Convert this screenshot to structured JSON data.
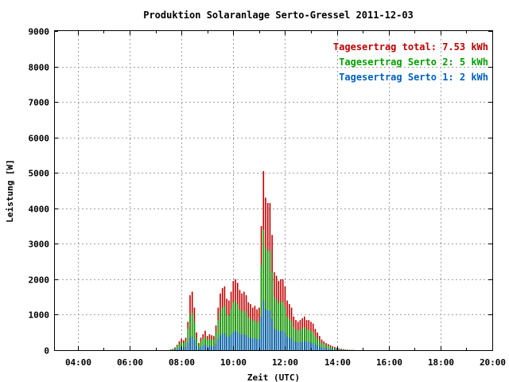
{
  "chart_data": {
    "type": "bar",
    "title": "Produktion Solaranlage Serto-Gressel 2011-12-03",
    "xlabel": "Zeit (UTC)",
    "ylabel": "Leistung [W]",
    "ylim": [
      0,
      9000
    ],
    "yticks": [
      0,
      1000,
      2000,
      3000,
      4000,
      5000,
      6000,
      7000,
      8000,
      9000
    ],
    "xlim": [
      "03:05",
      "20:00"
    ],
    "xticks": [
      "04:00",
      "06:00",
      "08:00",
      "10:00",
      "12:00",
      "14:00",
      "16:00",
      "18:00",
      "20:00"
    ],
    "grid": true,
    "legend_position": "top-right",
    "legend": [
      {
        "text": "Tagesertrag total: 7.53 kWh",
        "color": "#c00000"
      },
      {
        "text": "Tagesertrag Serto 2: 5 kWh",
        "color": "#00a000"
      },
      {
        "text": "Tagesertrag Serto 1: 2 kWh",
        "color": "#0060c0"
      }
    ],
    "series": [
      {
        "name": "total",
        "color": "#c00000",
        "x": [
          "07:35",
          "07:40",
          "07:45",
          "07:50",
          "07:55",
          "08:00",
          "08:05",
          "08:10",
          "08:15",
          "08:20",
          "08:25",
          "08:30",
          "08:35",
          "08:40",
          "08:45",
          "08:50",
          "08:55",
          "09:00",
          "09:05",
          "09:10",
          "09:15",
          "09:20",
          "09:25",
          "09:30",
          "09:35",
          "09:40",
          "09:45",
          "09:50",
          "09:55",
          "10:00",
          "10:05",
          "10:10",
          "10:15",
          "10:20",
          "10:25",
          "10:30",
          "10:35",
          "10:40",
          "10:45",
          "10:50",
          "10:55",
          "11:00",
          "11:05",
          "11:10",
          "11:15",
          "11:20",
          "11:25",
          "11:30",
          "11:35",
          "11:40",
          "11:45",
          "11:50",
          "11:55",
          "12:00",
          "12:05",
          "12:10",
          "12:15",
          "12:20",
          "12:25",
          "12:30",
          "12:35",
          "12:40",
          "12:45",
          "12:50",
          "12:55",
          "13:00",
          "13:05",
          "13:10",
          "13:15",
          "13:20",
          "13:25",
          "13:30",
          "13:35",
          "13:40",
          "13:45",
          "13:50",
          "13:55",
          "14:00",
          "14:05",
          "14:10",
          "14:15",
          "14:20",
          "14:25",
          "14:30",
          "14:35",
          "14:40"
        ],
        "values": [
          20,
          40,
          80,
          150,
          250,
          320,
          280,
          350,
          800,
          1550,
          1650,
          1200,
          500,
          200,
          350,
          450,
          550,
          400,
          450,
          420,
          400,
          700,
          1200,
          1600,
          1750,
          1800,
          1450,
          1400,
          1650,
          1950,
          2000,
          1900,
          1700,
          1600,
          1650,
          1550,
          1350,
          1300,
          1200,
          1250,
          1150,
          1200,
          3500,
          5050,
          4300,
          4150,
          4150,
          3250,
          2200,
          2100,
          1950,
          2000,
          2000,
          1800,
          1400,
          1300,
          1200,
          950,
          850,
          800,
          850,
          900,
          950,
          850,
          850,
          800,
          750,
          600,
          500,
          400,
          300,
          250,
          200,
          170,
          140,
          110,
          90,
          70,
          50,
          40,
          30,
          20,
          15,
          10,
          8,
          5
        ]
      },
      {
        "name": "Serto 2",
        "color": "#00a000",
        "x": [
          "07:35",
          "07:40",
          "07:45",
          "07:50",
          "07:55",
          "08:00",
          "08:05",
          "08:10",
          "08:15",
          "08:20",
          "08:25",
          "08:30",
          "08:35",
          "08:40",
          "08:45",
          "08:50",
          "08:55",
          "09:00",
          "09:05",
          "09:10",
          "09:15",
          "09:20",
          "09:25",
          "09:30",
          "09:35",
          "09:40",
          "09:45",
          "09:50",
          "09:55",
          "10:00",
          "10:05",
          "10:10",
          "10:15",
          "10:20",
          "10:25",
          "10:30",
          "10:35",
          "10:40",
          "10:45",
          "10:50",
          "10:55",
          "11:00",
          "11:05",
          "11:10",
          "11:15",
          "11:20",
          "11:25",
          "11:30",
          "11:35",
          "11:40",
          "11:45",
          "11:50",
          "11:55",
          "12:00",
          "12:05",
          "12:10",
          "12:15",
          "12:20",
          "12:25",
          "12:30",
          "12:35",
          "12:40",
          "12:45",
          "12:50",
          "12:55",
          "13:00",
          "13:05",
          "13:10",
          "13:15",
          "13:20",
          "13:25",
          "13:30",
          "13:35",
          "13:40",
          "13:45",
          "13:50",
          "13:55",
          "14:00",
          "14:05",
          "14:10",
          "14:15",
          "14:20",
          "14:25",
          "14:30",
          "14:35",
          "14:40"
        ],
        "values": [
          15,
          30,
          60,
          110,
          180,
          230,
          200,
          250,
          600,
          1000,
          1050,
          800,
          350,
          150,
          250,
          320,
          380,
          300,
          320,
          300,
          290,
          500,
          850,
          1100,
          1200,
          1250,
          1000,
          970,
          1150,
          1350,
          1400,
          1300,
          1150,
          1100,
          1130,
          1050,
          920,
          880,
          820,
          850,
          780,
          820,
          2400,
          3400,
          2900,
          2800,
          2800,
          2200,
          1500,
          1430,
          1330,
          1360,
          1360,
          1220,
          950,
          880,
          820,
          650,
          580,
          550,
          580,
          610,
          650,
          580,
          580,
          540,
          510,
          410,
          340,
          270,
          200,
          170,
          140,
          115,
          95,
          75,
          60,
          48,
          35,
          27,
          20,
          14,
          10,
          7,
          5,
          3
        ]
      },
      {
        "name": "Serto 1",
        "color": "#0060c0",
        "x": [
          "07:35",
          "07:40",
          "07:45",
          "07:50",
          "07:55",
          "08:00",
          "08:05",
          "08:10",
          "08:15",
          "08:20",
          "08:25",
          "08:30",
          "08:35",
          "08:40",
          "08:45",
          "08:50",
          "08:55",
          "09:00",
          "09:05",
          "09:10",
          "09:15",
          "09:20",
          "09:25",
          "09:30",
          "09:35",
          "09:40",
          "09:45",
          "09:50",
          "09:55",
          "10:00",
          "10:05",
          "10:10",
          "10:15",
          "10:20",
          "10:25",
          "10:30",
          "10:35",
          "10:40",
          "10:45",
          "10:50",
          "10:55",
          "11:00",
          "11:05",
          "11:10",
          "11:15",
          "11:20",
          "11:25",
          "11:30",
          "11:35",
          "11:40",
          "11:45",
          "11:50",
          "11:55",
          "12:00",
          "12:05",
          "12:10",
          "12:15",
          "12:20",
          "12:25",
          "12:30",
          "12:35",
          "12:40",
          "12:45",
          "12:50",
          "12:55",
          "13:00",
          "13:05",
          "13:10",
          "13:15",
          "13:20",
          "13:25",
          "13:30",
          "13:35",
          "13:40",
          "13:45",
          "13:50",
          "13:55",
          "14:00",
          "14:05",
          "14:10",
          "14:15",
          "14:20",
          "14:25",
          "14:30",
          "14:35",
          "14:40"
        ],
        "values": [
          5,
          10,
          20,
          40,
          70,
          90,
          80,
          100,
          200,
          350,
          380,
          290,
          120,
          50,
          90,
          120,
          150,
          100,
          120,
          110,
          110,
          180,
          320,
          420,
          460,
          480,
          380,
          370,
          440,
          520,
          540,
          510,
          460,
          440,
          450,
          420,
          360,
          350,
          320,
          340,
          310,
          320,
          950,
          1400,
          1170,
          1120,
          1120,
          880,
          600,
          570,
          530,
          540,
          540,
          490,
          380,
          350,
          330,
          260,
          230,
          220,
          230,
          240,
          260,
          230,
          230,
          220,
          200,
          160,
          130,
          110,
          80,
          70,
          55,
          45,
          38,
          30,
          24,
          19,
          14,
          11,
          8,
          6,
          4,
          3,
          2,
          1
        ]
      }
    ]
  }
}
